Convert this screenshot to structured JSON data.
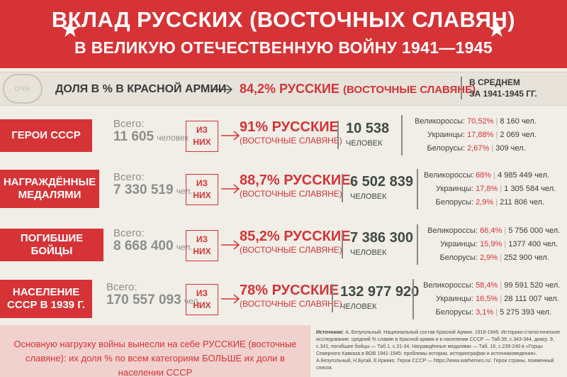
{
  "header": {
    "title_line1": "ВКЛАД РУССКИХ (ВОСТОЧНЫХ СЛАВЯН)",
    "title_line2": "В ВЕЛИКУЮ ОТЕЧЕСТВЕННУЮ ВОЙНУ 1941—1945"
  },
  "army": {
    "emblem": "ОЧН",
    "label": "ДОЛЯ В % В КРАСНОЙ АРМИИ",
    "pct": "84,2% РУССКИЕ",
    "pct_note": "(ВОСТОЧНЫЕ СЛАВЯНЕ)",
    "avg_line1": "В СРЕДНЕМ",
    "avg_line2": "ЗА 1941-1945 ГГ."
  },
  "rows": [
    {
      "category": "ГЕРОИ СССР",
      "total_label": "Всего:",
      "total": "11 605",
      "total_unit": "человек",
      "of_line1": "ИЗ",
      "of_line2": "НИХ",
      "result": "91% РУССКИЕ",
      "result_note": "(ВОСТОЧНЫЕ СЛАВЯНЕ)",
      "count": "10 538",
      "count_unit": "ЧЕЛОВЕК",
      "eth": [
        {
          "name": "Великороссы:",
          "pct": "70,52%",
          "val": "8 160 чел."
        },
        {
          "name": "Украинцы:",
          "pct": "17,88%",
          "val": "2 069 чел."
        },
        {
          "name": "Белорусы:",
          "pct": "2,67%",
          "val": "309 чел."
        }
      ]
    },
    {
      "category": "НАГРАЖДЁННЫЕ МЕДАЛЯМИ",
      "total_label": "Всего:",
      "total": "7 330 519",
      "total_unit": "чел.",
      "of_line1": "ИЗ",
      "of_line2": "НИХ",
      "result": "88,7% РУССКИЕ",
      "result_note": "(ВОСТОЧНЫЕ СЛАВЯНЕ)",
      "count": "6 502 839",
      "count_unit": "ЧЕЛОВЕК",
      "eth": [
        {
          "name": "Великороссы:",
          "pct": "68%",
          "val": "4 985 449 чел."
        },
        {
          "name": "Украинцы:",
          "pct": "17,8%",
          "val": "1 305 584 чел."
        },
        {
          "name": "Белорусы:",
          "pct": "2,9%",
          "val": "211 806 чел."
        }
      ]
    },
    {
      "category": "ПОГИБШИЕ БОЙЦЫ",
      "total_label": "Всего:",
      "total": "8 668 400",
      "total_unit": "чел.",
      "of_line1": "ИЗ",
      "of_line2": "НИХ",
      "result": "85,2% РУССКИЕ",
      "result_note": "(ВОСТОЧНЫЕ СЛАВЯНЕ)",
      "count": "7 386 300",
      "count_unit": "ЧЕЛОВЕК",
      "eth": [
        {
          "name": "Великороссы:",
          "pct": "66,4%",
          "val": "5 756 000 чел."
        },
        {
          "name": "Украинцы:",
          "pct": "15,9%",
          "val": "1377 400 чел."
        },
        {
          "name": "Белорусы:",
          "pct": "2,9%",
          "val": "252 900 чел."
        }
      ]
    },
    {
      "category": "НАСЕЛЕНИЕ СССР В 1939 Г.",
      "total_label": "Всего:",
      "total": "170 557 093",
      "total_unit": "чел.",
      "of_line1": "ИЗ",
      "of_line2": "НИХ",
      "result": "78% РУССКИЕ",
      "result_note": "(ВОСТОЧНЫЕ СЛАВЯНЕ)",
      "count": "132 977 920",
      "count_unit": "ЧЕЛОВЕК",
      "eth": [
        {
          "name": "Великороссы:",
          "pct": "58,4%",
          "val": "99 591 520 чел."
        },
        {
          "name": "Украинцы:",
          "pct": "16,5%",
          "val": "28 111 007 чел."
        },
        {
          "name": "Белорусы:",
          "pct": "3,1%",
          "val": "5 275 393 чел."
        }
      ]
    }
  ],
  "footer": {
    "conclusion": "Основную нагрузку войны вынесли на себе РУССКИЕ (восточные славяне): их доля % по всем категориям БОЛЬШЕ их доли в населении СССР",
    "sources_label": "Источники:",
    "sources_text": "А. Безугольный. Национальный состав Красной Армии. 1918-1945. Историко-статистическое исследование: средний % славян в Красной армии и в населении СССР — Таб.39, с.343-344, диагр. 9, с.341; погибшие бойцы — Таб.1, с.31-34. Награждённые медалями — Таб. 16, с.239-240 в «Горцы Северного Кавказа в ВОВ 1941-1945: проблемы истории, историографии и источниковедения». А.Безугольный, Н.Бугай, Е.Кринко. Герои СССР — https://www.warheroes.ru/. Герои страны, поименный список."
  },
  "colors": {
    "accent": "#d63336",
    "bg": "#f1eee7",
    "band": "#e7e3da",
    "pink": "#f1d1cd",
    "gray_text": "#8b8e8b",
    "dark_text": "#3f4a44"
  }
}
